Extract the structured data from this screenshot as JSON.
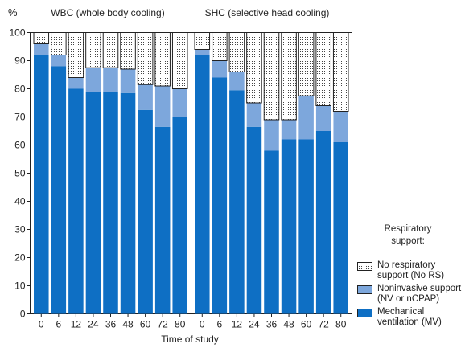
{
  "chart_data": {
    "type": "bar",
    "stacked": true,
    "ylabel": "%",
    "xlabel": "Time of study",
    "ylim": [
      0,
      100
    ],
    "yticks": [
      0,
      10,
      20,
      30,
      40,
      50,
      60,
      70,
      80,
      90,
      100
    ],
    "categories": [
      "0",
      "6",
      "12",
      "24",
      "36",
      "48",
      "60",
      "72",
      "80"
    ],
    "panels": [
      {
        "title": "WBC (whole body cooling)",
        "series": [
          {
            "key": "mv",
            "values": [
              92,
              88,
              80,
              79,
              79,
              78.5,
              72.5,
              66.5,
              70
            ]
          },
          {
            "key": "nv",
            "values": [
              4,
              4,
              4,
              8.5,
              8.5,
              8.5,
              9,
              14.5,
              10
            ]
          },
          {
            "key": "nors",
            "values": [
              4,
              8,
              16,
              12.5,
              12.5,
              13,
              18.5,
              19,
              20
            ]
          }
        ]
      },
      {
        "title": "SHC (selective head cooling)",
        "series": [
          {
            "key": "mv",
            "values": [
              92,
              84,
              79.5,
              66.5,
              58,
              62,
              62,
              65,
              61
            ]
          },
          {
            "key": "nv",
            "values": [
              2,
              6,
              6.5,
              8.5,
              11,
              7,
              15.5,
              9,
              11
            ]
          },
          {
            "key": "nors",
            "values": [
              6,
              10,
              14,
              25,
              31,
              31,
              22.5,
              26,
              28
            ]
          }
        ]
      }
    ],
    "legend": {
      "title_line1": "Respiratory",
      "title_line2": "support:",
      "position": "right",
      "items": [
        {
          "key": "nors",
          "label": "No respiratory support (No RS)",
          "color": "#ffffff",
          "pattern": "dots"
        },
        {
          "key": "nv",
          "label": "Noninvasive support (NV or nCPAP)",
          "color": "#7da7dc"
        },
        {
          "key": "mv",
          "label": "Mechanical ventilation (MV)",
          "color": "#0e6fc4"
        }
      ]
    },
    "colors": {
      "mv": "#0e6fc4",
      "nv": "#7da7dc",
      "nors": "#ffffff"
    }
  }
}
